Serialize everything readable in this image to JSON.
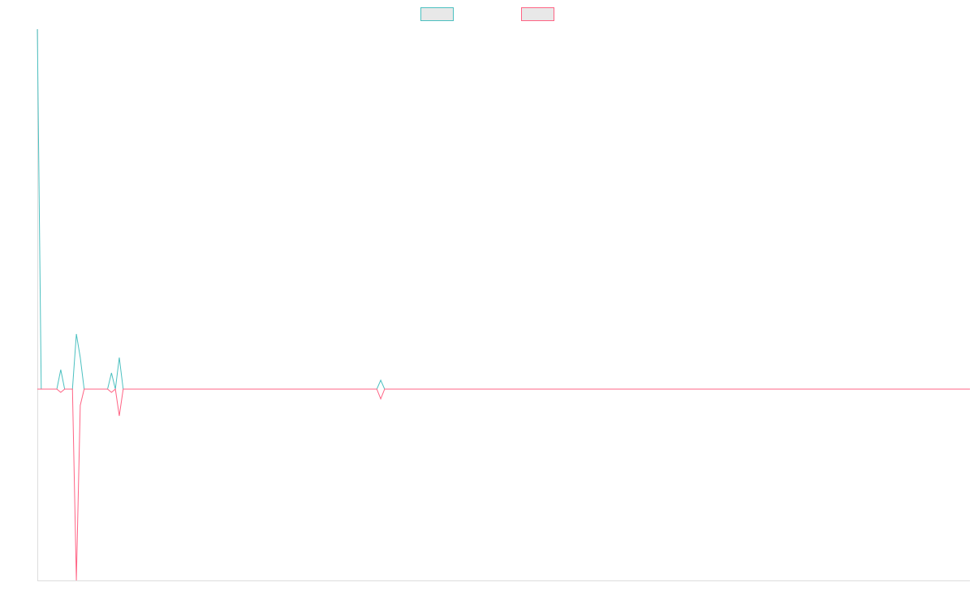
{
  "chart_data": {
    "type": "line",
    "categories": [
      null,
      null,
      null,
      null,
      null,
      null,
      null,
      null,
      null,
      null,
      null,
      null,
      null,
      null,
      null,
      null,
      null,
      null,
      null,
      null,
      null,
      null,
      null,
      null,
      null,
      null,
      null,
      null,
      null,
      null,
      null,
      null,
      null,
      null,
      null,
      null,
      null,
      null,
      null,
      null,
      null,
      null,
      null,
      null,
      null,
      null,
      null,
      null,
      null,
      null,
      null,
      null,
      null,
      null,
      null,
      null,
      null,
      null,
      null,
      null,
      null,
      null,
      null,
      null,
      null,
      null,
      null,
      null,
      null,
      null,
      null,
      null,
      null,
      null,
      null,
      null,
      null,
      null,
      null,
      null,
      null,
      null,
      null,
      null,
      null,
      null,
      null,
      null,
      null,
      null,
      null,
      null,
      null,
      null,
      null,
      null,
      null,
      null,
      null,
      null,
      null,
      null,
      null,
      null,
      null,
      null,
      null,
      null,
      null,
      null,
      null,
      null,
      null,
      null,
      null,
      null,
      null,
      null,
      null,
      null,
      null,
      null,
      null,
      null,
      null,
      null,
      null,
      null,
      null,
      null,
      null,
      null,
      null,
      null,
      null,
      null,
      null,
      null,
      null,
      null,
      null,
      null,
      null,
      null,
      null,
      null,
      null,
      null,
      null,
      null,
      null,
      null,
      null,
      null,
      null,
      null,
      null,
      null,
      null,
      null,
      null,
      null,
      null,
      null,
      null,
      null,
      null,
      null,
      null,
      null,
      null,
      null,
      null,
      null,
      null,
      null,
      null,
      null,
      null,
      null,
      null,
      null,
      null,
      null,
      null,
      null,
      null,
      null,
      null,
      null,
      null,
      null,
      null,
      null,
      null,
      null,
      null,
      null,
      null,
      null,
      null,
      null,
      null,
      null,
      null,
      null,
      null,
      null,
      null,
      null,
      null,
      null,
      null,
      null,
      null,
      null,
      null,
      null,
      null,
      null,
      null,
      null,
      null,
      null,
      null,
      null,
      null,
      null,
      null,
      null,
      null,
      null,
      null,
      null,
      null,
      null,
      null,
      null,
      null,
      null
    ],
    "series": [
      {
        "color": "#4bc0c0",
        "values": [
          444,
          0,
          0,
          0,
          0,
          0,
          24,
          0,
          0,
          0,
          68,
          39,
          0,
          0,
          0,
          0,
          0,
          0,
          0,
          20,
          0,
          39,
          0,
          0,
          0,
          0,
          0,
          0,
          0,
          0,
          0,
          0,
          0,
          0,
          0,
          0,
          0,
          0,
          0,
          0,
          0,
          0,
          0,
          0,
          0,
          0,
          0,
          0,
          0,
          0,
          0,
          0,
          0,
          0,
          0,
          0,
          0,
          0,
          0,
          0,
          0,
          0,
          0,
          0,
          0,
          0,
          0,
          0,
          0,
          0,
          0,
          0,
          0,
          0,
          0,
          0,
          0,
          0,
          0,
          0,
          0,
          0,
          0,
          0,
          0,
          0,
          0,
          0,
          11,
          0,
          0,
          0,
          0,
          0,
          0,
          0,
          0,
          0,
          0,
          0,
          0,
          0,
          0,
          0,
          0,
          0,
          0,
          0,
          0,
          0,
          0,
          0,
          0,
          0,
          0,
          0,
          0,
          0,
          0,
          0,
          0,
          0,
          0,
          0,
          0,
          0,
          0,
          0,
          0,
          0,
          0,
          0,
          0,
          0,
          0,
          0,
          0,
          0,
          0,
          0,
          0,
          0,
          0,
          0,
          0,
          0,
          0,
          0,
          0,
          0,
          0,
          0,
          0,
          0,
          0,
          0,
          0,
          0,
          0,
          0,
          0,
          0,
          0,
          0,
          0,
          0,
          0,
          0,
          0,
          0,
          0,
          0,
          0,
          0,
          0,
          0,
          0,
          0,
          0,
          0,
          0,
          0,
          0,
          0,
          0,
          0,
          0,
          0,
          0,
          0,
          0,
          0,
          0,
          0,
          0,
          0,
          0,
          0,
          0,
          0,
          0,
          0,
          0,
          0,
          0,
          0,
          0,
          0,
          0,
          0,
          0,
          0,
          0,
          0,
          0,
          0,
          0,
          0,
          0,
          0,
          0,
          0,
          0,
          0,
          0,
          0,
          0,
          0,
          0,
          0,
          0,
          0,
          0,
          0,
          0,
          0,
          0,
          0,
          0,
          0
        ]
      },
      {
        "color": "#ff6384",
        "values": [
          0,
          0,
          0,
          0,
          0,
          0,
          -4,
          0,
          0,
          0,
          -236,
          -20,
          0,
          0,
          0,
          0,
          0,
          0,
          0,
          -4,
          0,
          -33,
          0,
          0,
          0,
          0,
          0,
          0,
          0,
          0,
          0,
          0,
          0,
          0,
          0,
          0,
          0,
          0,
          0,
          0,
          0,
          0,
          0,
          0,
          0,
          0,
          0,
          0,
          0,
          0,
          0,
          0,
          0,
          0,
          0,
          0,
          0,
          0,
          0,
          0,
          0,
          0,
          0,
          0,
          0,
          0,
          0,
          0,
          0,
          0,
          0,
          0,
          0,
          0,
          0,
          0,
          0,
          0,
          0,
          0,
          0,
          0,
          0,
          0,
          0,
          0,
          0,
          0,
          -12,
          0,
          0,
          0,
          0,
          0,
          0,
          0,
          0,
          0,
          0,
          0,
          0,
          0,
          0,
          0,
          0,
          0,
          0,
          0,
          0,
          0,
          0,
          0,
          0,
          0,
          0,
          0,
          0,
          0,
          0,
          0,
          0,
          0,
          0,
          0,
          0,
          0,
          0,
          0,
          0,
          0,
          0,
          0,
          0,
          0,
          0,
          0,
          0,
          0,
          0,
          0,
          0,
          0,
          0,
          0,
          0,
          0,
          0,
          0,
          0,
          0,
          0,
          0,
          0,
          0,
          0,
          0,
          0,
          0,
          0,
          0,
          0,
          0,
          0,
          0,
          0,
          0,
          0,
          0,
          0,
          0,
          0,
          0,
          0,
          0,
          0,
          0,
          0,
          0,
          0,
          0,
          0,
          0,
          0,
          0,
          0,
          0,
          0,
          0,
          0,
          0,
          0,
          0,
          0,
          0,
          0,
          0,
          0,
          0,
          0,
          0,
          0,
          0,
          0,
          0,
          0,
          0,
          0,
          0,
          0,
          0,
          0,
          0,
          0,
          0,
          0,
          0,
          0,
          0,
          0,
          0,
          0,
          0,
          0,
          0,
          0,
          0,
          0,
          0,
          0,
          0,
          0,
          0,
          0,
          0,
          0,
          0,
          0,
          0,
          0,
          0
        ]
      }
    ],
    "ylim": [
      -236,
      444
    ]
  }
}
